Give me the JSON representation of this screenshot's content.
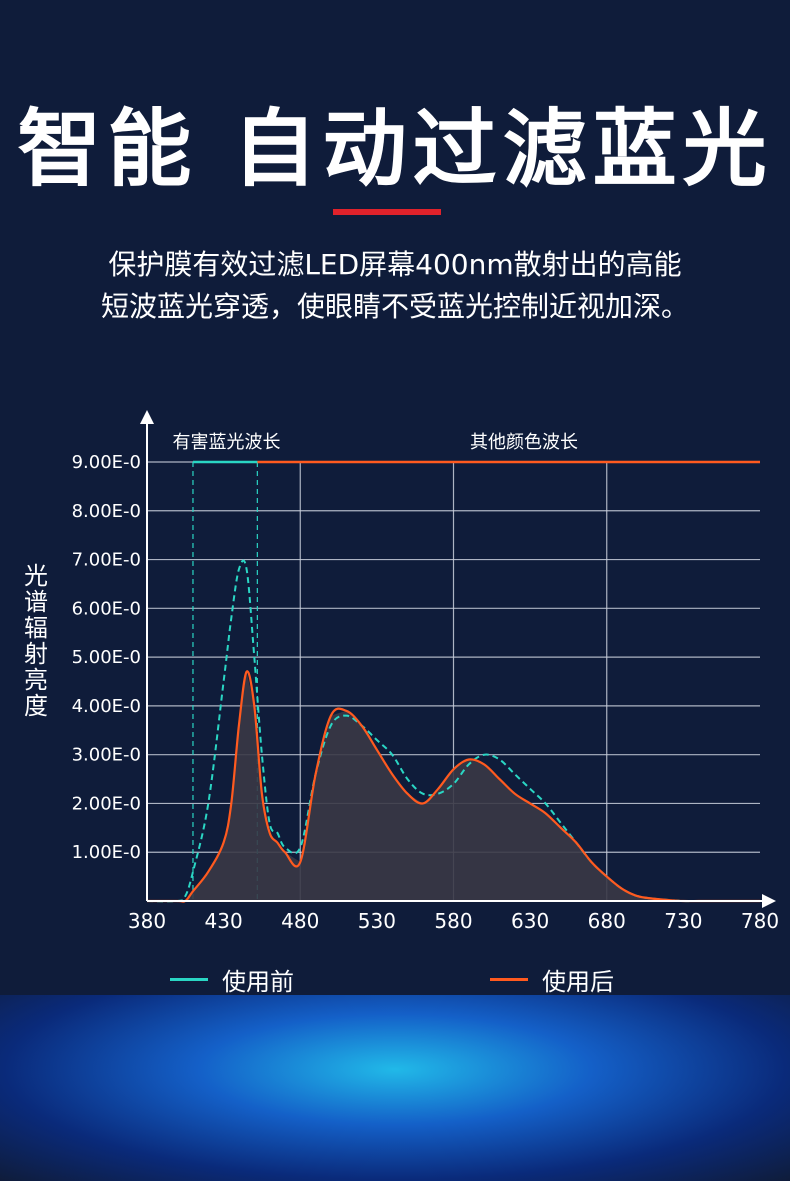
{
  "header": {
    "title": "智能 自动过滤蓝光",
    "subtitle_line1": "保护膜有效过滤LED屏幕400nm散射出的高能",
    "subtitle_line2": "短波蓝光穿透，使眼睛不受蓝光控制近视加深。"
  },
  "chart_data": {
    "type": "line",
    "ylabel": "光谱辐射亮度",
    "x_ticks": [
      "380",
      "430",
      "480",
      "530",
      "580",
      "630",
      "680",
      "730",
      "780"
    ],
    "y_ticks": [
      "1.00E-0",
      "2.00E-0",
      "3.00E-0",
      "4.00E-0",
      "5.00E-0",
      "6.00E-0",
      "7.00E-0",
      "8.00E-0",
      "9.00E-0"
    ],
    "xlim": [
      380,
      780
    ],
    "ylim": [
      0,
      9
    ],
    "grid": true,
    "legend_position": "bottom",
    "annotations": {
      "blue_band": "有害蓝光波长",
      "other_band": "其他颜色波长"
    },
    "band_x": [
      410,
      452
    ],
    "series": [
      {
        "name": "使用前",
        "color": "#2ad6c4",
        "x": [
          380,
          400,
          405,
          410,
          420,
          430,
          435,
          440,
          445,
          450,
          455,
          460,
          465,
          470,
          480,
          490,
          500,
          510,
          520,
          530,
          540,
          550,
          560,
          570,
          580,
          590,
          600,
          610,
          620,
          630,
          640,
          650,
          660,
          670,
          680,
          690,
          700,
          710,
          720,
          730,
          740,
          750,
          760,
          770,
          780
        ],
        "y": [
          0,
          0,
          0.1,
          0.6,
          2.0,
          4.5,
          5.8,
          6.8,
          6.8,
          5.0,
          3.0,
          1.6,
          1.4,
          1.1,
          1.1,
          2.6,
          3.6,
          3.8,
          3.6,
          3.3,
          3.0,
          2.5,
          2.2,
          2.2,
          2.4,
          2.8,
          3.0,
          2.9,
          2.6,
          2.3,
          2.0,
          1.6,
          1.2,
          0.8,
          0.5,
          0.25,
          0.1,
          0.05,
          0.02,
          0,
          0,
          0,
          0,
          0,
          0
        ]
      },
      {
        "name": "使用后",
        "color": "#ff5a1f",
        "x": [
          380,
          400,
          405,
          410,
          420,
          430,
          435,
          440,
          445,
          450,
          455,
          460,
          465,
          470,
          480,
          490,
          500,
          510,
          520,
          530,
          540,
          550,
          560,
          570,
          580,
          590,
          600,
          610,
          620,
          630,
          640,
          650,
          660,
          670,
          680,
          690,
          700,
          710,
          720,
          730,
          740,
          750,
          760,
          770,
          780
        ],
        "y": [
          0,
          0,
          0,
          0.2,
          0.6,
          1.2,
          2.0,
          3.6,
          4.7,
          4.0,
          2.2,
          1.4,
          1.2,
          1.0,
          0.8,
          2.6,
          3.8,
          3.9,
          3.6,
          3.1,
          2.6,
          2.2,
          2.0,
          2.3,
          2.7,
          2.9,
          2.8,
          2.5,
          2.2,
          2.0,
          1.8,
          1.5,
          1.2,
          0.8,
          0.5,
          0.25,
          0.1,
          0.05,
          0.02,
          0,
          0,
          0,
          0,
          0,
          0
        ]
      }
    ]
  }
}
